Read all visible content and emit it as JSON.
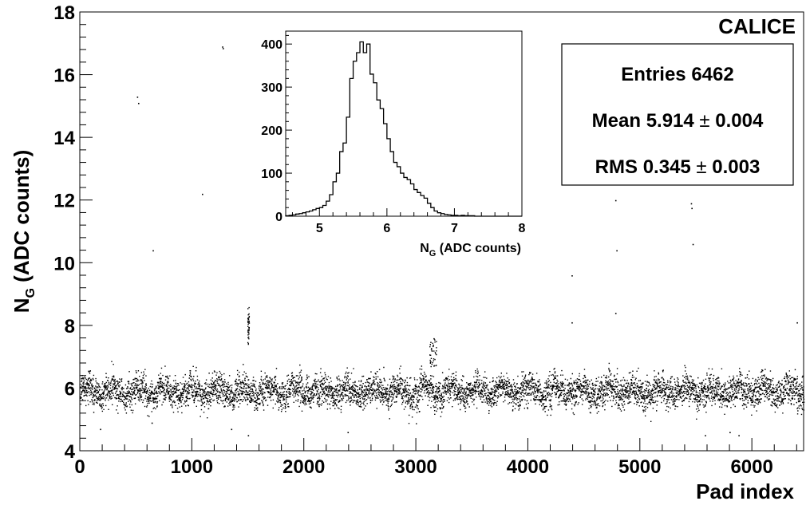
{
  "chart_data": [
    {
      "type": "scatter",
      "xlabel": "Pad index",
      "ylabel": "N_G (ADC counts)",
      "ylabel_main": "N",
      "ylabel_sub": "G",
      "ylabel_rest": " (ADC counts)",
      "xlim": [
        0,
        6462
      ],
      "ylim": [
        4,
        18
      ],
      "xticks": [
        0,
        1000,
        2000,
        3000,
        4000,
        5000,
        6000
      ],
      "yticks": [
        4,
        6,
        8,
        10,
        12,
        14,
        16,
        18
      ],
      "xtick_labels": [
        "0",
        "1000",
        "2000",
        "3000",
        "4000",
        "5000",
        "6000"
      ],
      "ytick_labels": [
        "4",
        "6",
        "8",
        "10",
        "12",
        "14",
        "16",
        "18"
      ],
      "grid": false,
      "corner_label": "CALICE",
      "stats": {
        "entries_label": "Entries",
        "entries_value": "6462",
        "mean_label": "Mean",
        "mean_value": "5.914",
        "mean_error": "0.004",
        "rms_label": "RMS",
        "rms_value": "0.345",
        "rms_error": "0.003",
        "pm_symbol": "±"
      },
      "n_points": 6462,
      "baseline_mean": 5.914,
      "baseline_rms": 0.345,
      "outliers": [
        {
          "x": 510,
          "y": 15.3
        },
        {
          "x": 520,
          "y": 15.1
        },
        {
          "x": 1090,
          "y": 12.2
        },
        {
          "x": 1270,
          "y": 16.9
        },
        {
          "x": 1275,
          "y": 16.85
        },
        {
          "x": 650,
          "y": 10.4
        },
        {
          "x": 4390,
          "y": 9.6
        },
        {
          "x": 4390,
          "y": 8.1
        },
        {
          "x": 4780,
          "y": 12.0
        },
        {
          "x": 4790,
          "y": 10.4
        },
        {
          "x": 4780,
          "y": 8.4
        },
        {
          "x": 5455,
          "y": 11.9
        },
        {
          "x": 5460,
          "y": 11.75
        },
        {
          "x": 5470,
          "y": 10.6
        },
        {
          "x": 6400,
          "y": 8.1
        },
        {
          "x": 6450,
          "y": 6.4
        },
        {
          "x": 1500,
          "y": 4.5
        },
        {
          "x": 2390,
          "y": 4.6
        },
        {
          "x": 5800,
          "y": 4.6
        },
        {
          "x": 5880,
          "y": 4.5
        },
        {
          "x": 5580,
          "y": 4.5
        },
        {
          "x": 1350,
          "y": 4.7
        },
        {
          "x": 180,
          "y": 4.7
        },
        {
          "x": 640,
          "y": 4.9
        }
      ],
      "clusters": [
        {
          "x_from": 1495,
          "x_to": 1510,
          "y_from": 7.4,
          "y_to": 8.6
        },
        {
          "x_from": 3120,
          "x_to": 3180,
          "y_from": 6.7,
          "y_to": 7.6
        }
      ]
    },
    {
      "type": "histogram",
      "xlabel": "N_G (ADC counts)",
      "xlabel_main": "N",
      "xlabel_sub": "G",
      "xlabel_rest": " (ADC counts)",
      "xlim": [
        4.5,
        8
      ],
      "ylim": [
        0,
        430
      ],
      "xticks": [
        5,
        6,
        7,
        8
      ],
      "yticks": [
        0,
        100,
        200,
        300,
        400
      ],
      "xtick_labels": [
        "5",
        "6",
        "7",
        "8"
      ],
      "ytick_labels": [
        "0",
        "100",
        "200",
        "300",
        "400"
      ],
      "bin_width": 0.05,
      "bin_start": 4.5,
      "values": [
        1,
        2,
        3,
        5,
        6,
        8,
        10,
        12,
        15,
        18,
        20,
        25,
        35,
        50,
        80,
        100,
        150,
        170,
        230,
        320,
        360,
        380,
        405,
        380,
        400,
        330,
        310,
        270,
        250,
        215,
        180,
        150,
        125,
        115,
        100,
        90,
        85,
        75,
        62,
        55,
        48,
        42,
        30,
        20,
        12,
        8,
        6,
        4,
        3,
        2,
        2,
        1,
        2,
        1,
        1,
        1,
        0,
        0,
        0,
        0,
        0,
        0,
        0,
        0,
        0,
        0,
        0,
        0,
        0,
        0
      ]
    }
  ]
}
